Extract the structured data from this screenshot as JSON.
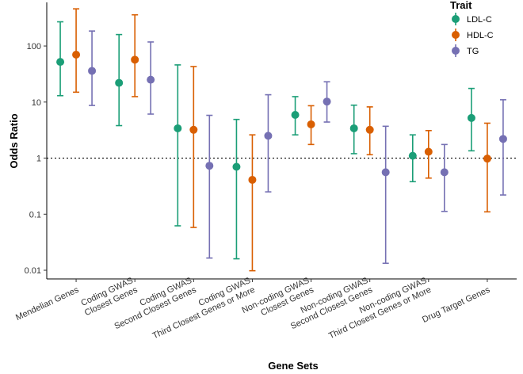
{
  "chart_data": {
    "type": "scatter",
    "title": "",
    "xlabel": "Gene Sets",
    "ylabel": "Odds Ratio",
    "yscale": "log",
    "ylim": [
      0.007,
      600
    ],
    "yticks": [
      {
        "value": 0.01,
        "label": "0.01"
      },
      {
        "value": 0.1,
        "label": "0.1"
      },
      {
        "value": 1,
        "label": "1"
      },
      {
        "value": 10,
        "label": "10"
      },
      {
        "value": 100,
        "label": "100"
      }
    ],
    "reference_line": {
      "value": 1,
      "style": "dotted"
    },
    "grid": false,
    "legend": {
      "title": "Trait",
      "position": "top-right"
    },
    "categories": [
      [
        "Mendelian Genes"
      ],
      [
        "Coding GWAS",
        "Closest Genes"
      ],
      [
        "Coding GWAS",
        "Second Closest Genes"
      ],
      [
        "Coding GWAS",
        "Third Closest Genes or More"
      ],
      [
        "Non-coding GWAS",
        "Closest Genes"
      ],
      [
        "Non-coding GWAS",
        "Second Closest Genes"
      ],
      [
        "Non-coding GWAS",
        "Third Closest Genes or More"
      ],
      [
        "Drug Target Genes"
      ]
    ],
    "series": [
      {
        "name": "LDL-C",
        "color": "#1b9e77",
        "values": [
          52,
          22,
          3.4,
          0.7,
          5.9,
          3.4,
          1.1,
          5.2
        ],
        "lower": [
          13,
          3.8,
          0.062,
          0.016,
          2.6,
          1.2,
          0.38,
          1.35
        ],
        "upper": [
          270,
          160,
          46,
          4.9,
          12.5,
          8.8,
          2.6,
          17.5
        ]
      },
      {
        "name": "HDL-C",
        "color": "#d95f02",
        "values": [
          70,
          57,
          3.2,
          0.41,
          4.0,
          3.2,
          1.3,
          0.98
        ],
        "lower": [
          15,
          12.5,
          0.058,
          0.0098,
          1.75,
          1.15,
          0.44,
          0.11
        ],
        "upper": [
          460,
          360,
          43,
          2.6,
          8.6,
          8.2,
          3.1,
          4.2
        ]
      },
      {
        "name": "TG",
        "color": "#7570b3",
        "values": [
          36,
          25,
          0.73,
          2.5,
          10.2,
          0.56,
          0.56,
          2.2
        ],
        "lower": [
          8.7,
          6.1,
          0.0165,
          0.25,
          4.4,
          0.0133,
          0.112,
          0.22
        ],
        "upper": [
          185,
          118,
          5.8,
          13.5,
          23,
          3.7,
          1.75,
          11
        ]
      }
    ]
  }
}
